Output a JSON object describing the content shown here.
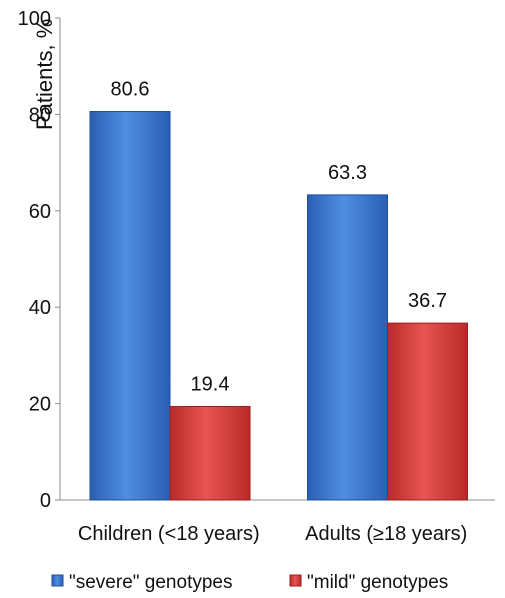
{
  "chart_data": {
    "type": "bar",
    "title": "",
    "xlabel": "",
    "ylabel": "Patients, %",
    "categories": [
      "Children (<18 years)",
      "Adults (≥18 years)"
    ],
    "series": [
      {
        "name": "\"severe\" genotypes",
        "values": [
          80.6,
          63.3
        ],
        "color": "#3a73c9",
        "color_dark": "#1f4f99"
      },
      {
        "name": "\"mild\" genotypes",
        "values": [
          19.4,
          36.7
        ],
        "color": "#d63a38",
        "color_dark": "#9a1f1d"
      }
    ],
    "ylim": [
      0,
      100
    ],
    "yticks": [
      0,
      20,
      40,
      60,
      80,
      100
    ],
    "data_labels": [
      "80.6",
      "19.4",
      "63.3",
      "36.7"
    ],
    "grid": false,
    "legend_position": "bottom"
  }
}
